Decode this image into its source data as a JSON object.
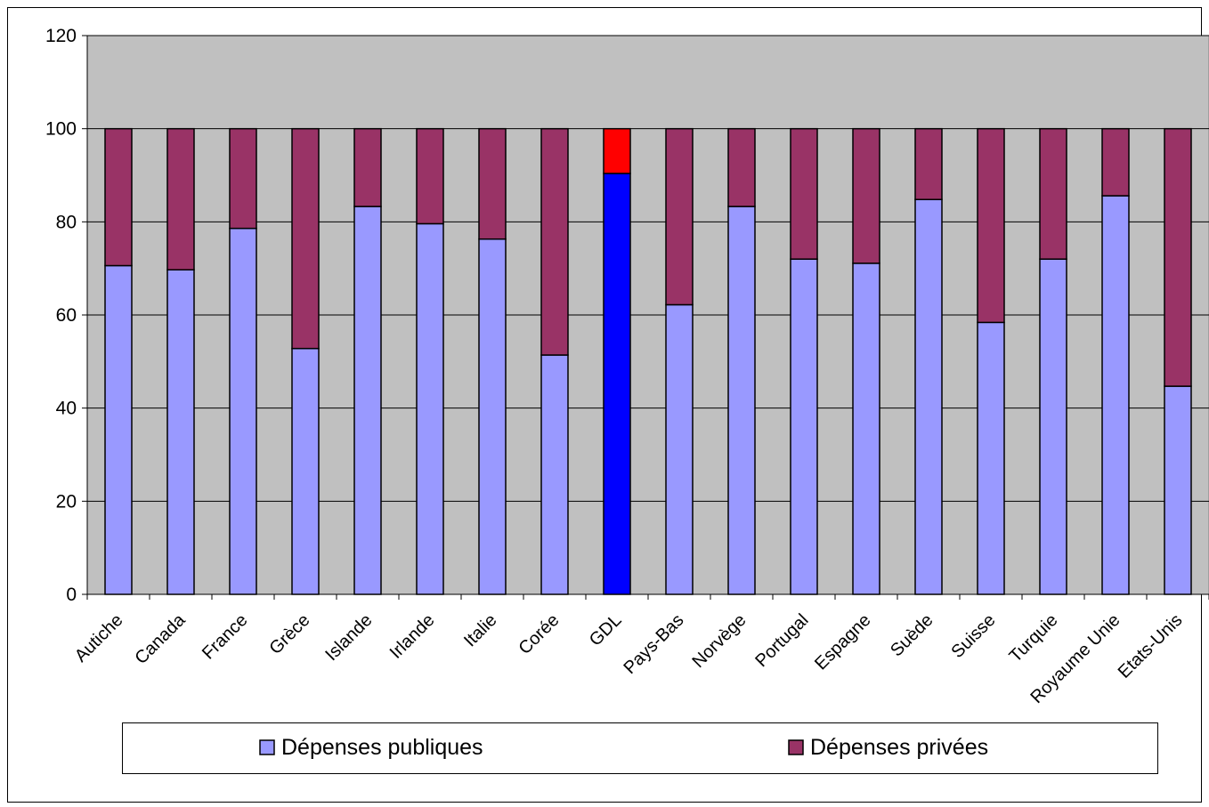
{
  "chart_data": {
    "type": "bar",
    "stacked": true,
    "title": "",
    "xlabel": "",
    "ylabel": "",
    "ylim": [
      0,
      120
    ],
    "yticks": [
      0,
      20,
      40,
      60,
      80,
      100,
      120
    ],
    "grid": "horizontal",
    "legend_position": "bottom",
    "plot_background": "#c0c0c0",
    "categories": [
      "Autiche",
      "Canada",
      "France",
      "Grèce",
      "Islande",
      "Irlande",
      "Italie",
      "Corée",
      "GDL",
      "Pays-Bas",
      "Norvège",
      "Portugal",
      "Espagne",
      "Suède",
      "Suisse",
      "Turquie",
      "Royaume Unie",
      "Etats-Unis"
    ],
    "series": [
      {
        "name": "Dépenses publiques",
        "color": "#9999ff",
        "values": [
          70.6,
          69.7,
          78.6,
          52.8,
          83.3,
          79.6,
          76.3,
          51.4,
          90.4,
          62.2,
          83.3,
          72.0,
          71.1,
          84.8,
          58.4,
          72.0,
          85.6,
          44.7
        ]
      },
      {
        "name": "Dépenses privées",
        "color": "#993366",
        "values": [
          29.4,
          30.3,
          21.4,
          47.2,
          16.7,
          20.4,
          23.7,
          48.6,
          9.6,
          37.8,
          16.7,
          28.0,
          28.9,
          15.2,
          41.6,
          28.0,
          14.4,
          55.3
        ]
      }
    ],
    "highlight": {
      "category": "GDL",
      "colors": [
        "#0000ff",
        "#ff0000"
      ]
    }
  }
}
